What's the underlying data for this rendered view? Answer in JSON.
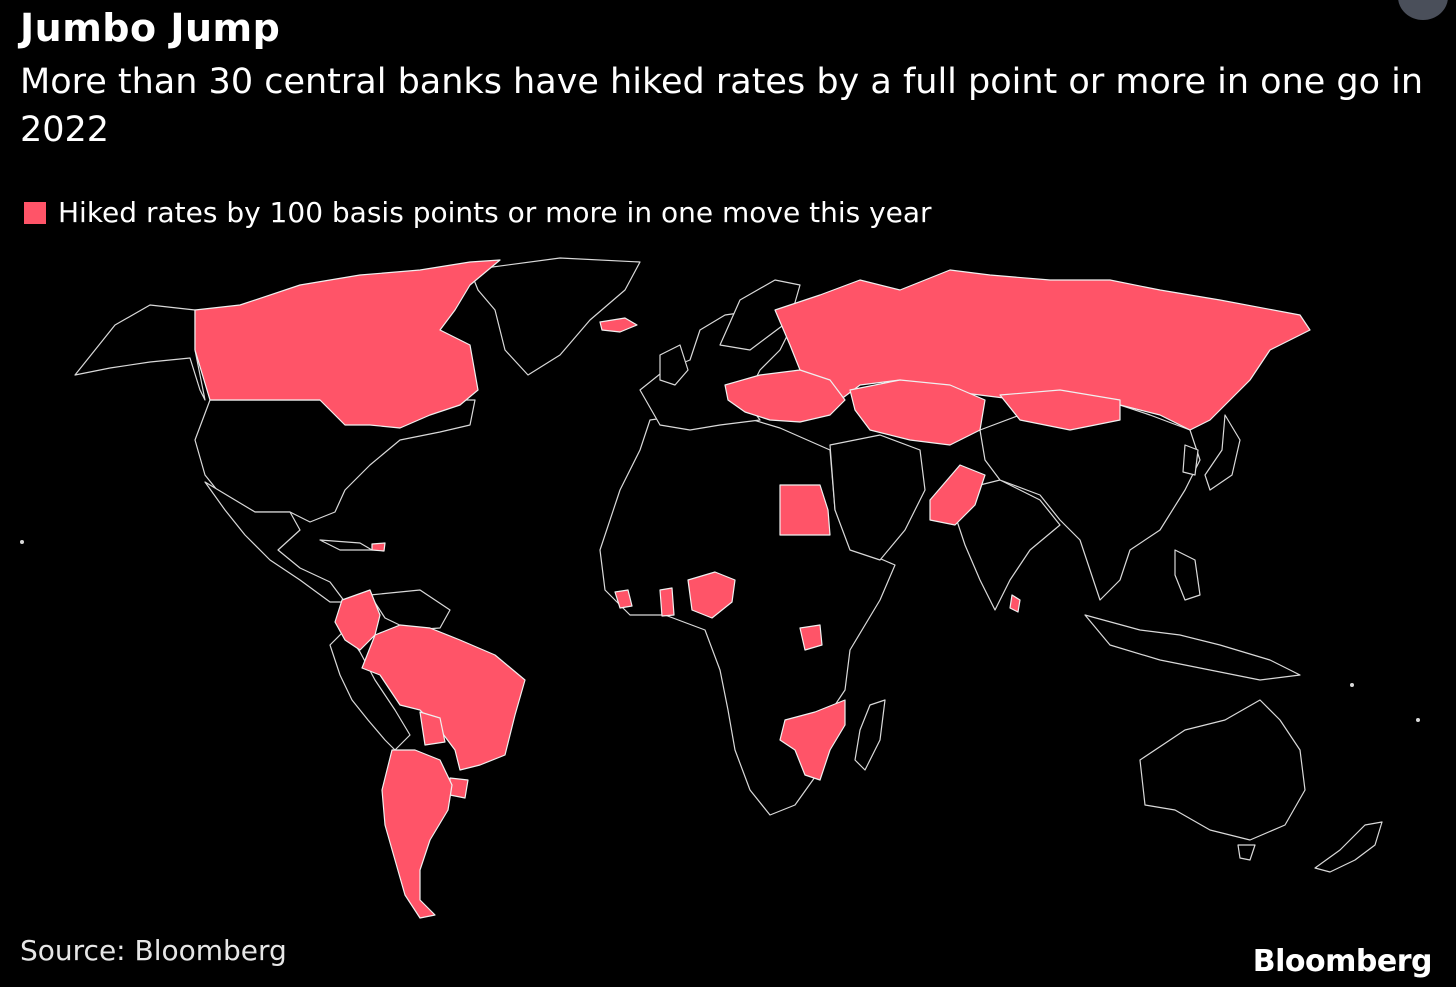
{
  "header": {
    "title": "Jumbo Jump",
    "subtitle": "More than 30 central banks have hiked rates by a full point or more in one go in 2022"
  },
  "legend": {
    "label": "Hiked rates by 100 basis points or more in one move this year",
    "color": "#ff5468"
  },
  "map": {
    "base_fill": "#000000",
    "border_color": "#d9d9d9",
    "highlight_color": "#ff5468",
    "highlighted_regions": [
      "Canada",
      "Russia",
      "Kazakhstan",
      "Ukraine",
      "Poland",
      "Hungary",
      "Romania",
      "Czechia",
      "Egypt",
      "Pakistan",
      "Sri Lanka",
      "Nigeria",
      "Ghana",
      "Sierra Leone",
      "Uganda",
      "Mozambique",
      "Zambia",
      "Malawi",
      "Brazil",
      "Colombia",
      "Chile",
      "Argentina",
      "Paraguay",
      "Uruguay",
      "Dominican Republic",
      "Iceland",
      "Mongolia"
    ]
  },
  "footer": {
    "source": "Source: Bloomberg",
    "logo": "Bloomberg"
  }
}
